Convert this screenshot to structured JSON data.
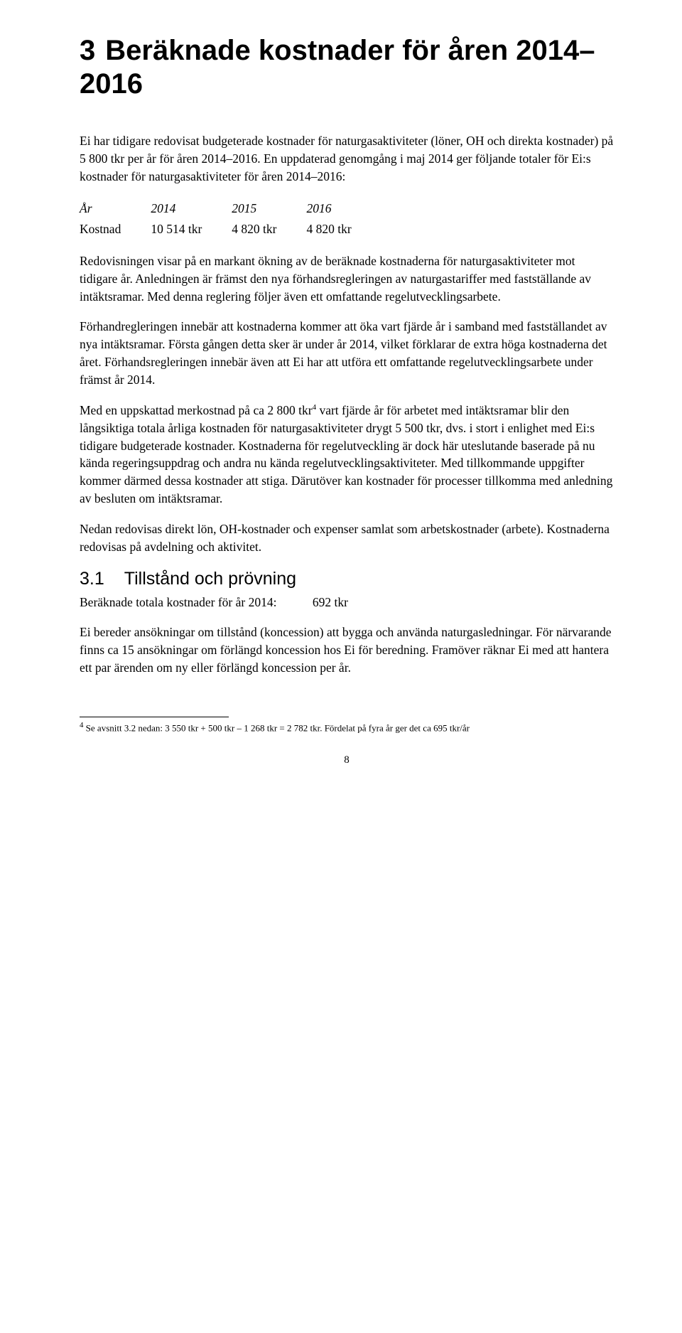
{
  "chapter": {
    "number": "3",
    "title": "Beräknade kostnader för åren 2014–2016"
  },
  "p1": "Ei har tidigare redovisat budgeterade kostnader för naturgasaktiviteter (löner, OH och direkta kostnader) på 5 800 tkr per år för åren 2014–2016. En uppdaterad genomgång i maj 2014 ger följande totaler för Ei:s kostnader för naturgasaktiviteter för åren 2014–2016:",
  "cost_table": {
    "header_label": "År",
    "years": [
      "2014",
      "2015",
      "2016"
    ],
    "row_label": "Kostnad",
    "values": [
      "10 514 tkr",
      "4 820 tkr",
      "4 820 tkr"
    ]
  },
  "p2": "Redovisningen visar på en markant ökning av de beräknade kostnaderna för naturgasaktiviteter mot tidigare år. Anledningen är främst den nya förhands­regleringen av naturgastariffer med fastställande av intäktsramar. Med denna reglering följer även ett omfattande regelutvecklingsarbete.",
  "p3": "Förhandregleringen innebär att kostnaderna kommer att öka vart fjärde år i samband med fastställandet av nya intäktsramar. Första gången detta sker är under år 2014, vilket förklarar de extra höga kostnaderna det året. Förhands­regleringen innebär även att Ei har att utföra ett omfattande regelutvecklings­arbete under främst år 2014.",
  "p4_a": "Med en uppskattad merkostnad på ca 2 800 tkr",
  "p4_fnmark": "4",
  "p4_b": " vart fjärde år för arbetet med intäktsramar blir den långsiktiga totala årliga kostnaden för naturgasaktiviteter drygt 5 500 tkr, dvs. i stort i enlighet med Ei:s tidigare budgeterade kostnader. Kostnaderna för regelutveckling är dock här uteslutande baserade på nu kända regeringsuppdrag och andra nu kända regelutvecklingsaktiviteter. Med tillkommande uppgifter kommer därmed dessa kostnader att stiga. Därutöver kan kostnader för processer tillkomma med anledning av besluten om intäktsramar.",
  "p5": "Nedan redovisas direkt lön, OH-kostnader och expenser samlat som arbets­kostnader (arbete). Kostnaderna redovisas på avdelning och aktivitet.",
  "section": {
    "number": "3.1",
    "title": "Tillstånd och prövning",
    "calc_label": "Beräknade totala kostnader för år 2014:",
    "calc_value": "692 tkr"
  },
  "p6": "Ei bereder ansökningar om tillstånd (koncession) att bygga och använda naturgasledningar. För närvarande finns ca 15 ansökningar om förlängd koncession hos Ei för beredning. Framöver räknar Ei med att hantera ett par ärenden om ny eller förlängd koncession per år.",
  "footnote": {
    "mark": "4",
    "text": " Se avsnitt 3.2 nedan: 3 550 tkr + 500 tkr – 1 268 tkr = 2 782 tkr. Fördelat på fyra år ger det ca 695 tkr/år"
  },
  "page_number": "8"
}
